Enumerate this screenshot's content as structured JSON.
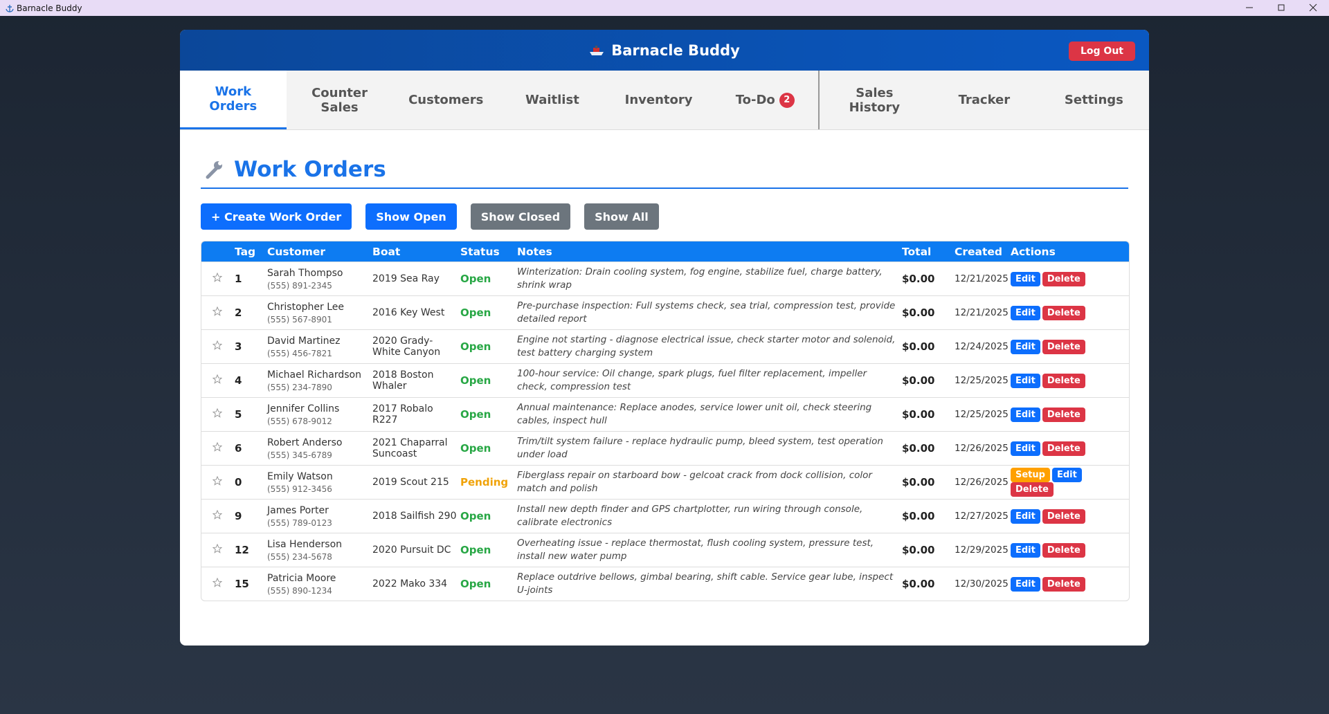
{
  "window": {
    "title": "Barnacle Buddy"
  },
  "header": {
    "title": "Barnacle Buddy",
    "logout": "Log Out"
  },
  "tabs": [
    {
      "label": "Work Orders"
    },
    {
      "label": "Counter Sales"
    },
    {
      "label": "Customers"
    },
    {
      "label": "Waitlist"
    },
    {
      "label": "Inventory"
    },
    {
      "label": "To-Do",
      "badge": 2
    }
  ],
  "tabs_right": [
    {
      "label": "Sales History"
    },
    {
      "label": "Tracker"
    },
    {
      "label": "Settings"
    }
  ],
  "section": {
    "title": "Work Orders"
  },
  "buttons": [
    "+ Create Work Order",
    "Show Open",
    "Show Closed",
    "Show All"
  ],
  "table": {
    "columns": [
      "Tag",
      "Customer",
      "Boat",
      "Status",
      "Notes",
      "Total",
      "Created",
      "Actions"
    ],
    "rows": [
      {
        "tag": 1,
        "name": "Sarah Thompso",
        "phone": "(555) 891-2345",
        "boat": "2019 Sea Ray",
        "status": {
          "text": "Open",
          "color": "#28a745"
        },
        "notes": "Winterization: Drain cooling system, fog engine, stabilize fuel, charge battery, shrink wrap",
        "total": "$0.00",
        "created": "12/21/2025",
        "actions": [
          {
            "label": "Edit",
            "color": "#0d6efd"
          },
          {
            "label": "Delete",
            "color": "#dc3545"
          }
        ]
      },
      {
        "tag": 2,
        "name": "Christopher Lee",
        "phone": "(555) 567-8901",
        "boat": "2016 Key West",
        "status": {
          "text": "Open",
          "color": "#28a745"
        },
        "notes": "Pre-purchase inspection: Full systems check, sea trial, compression test, provide detailed report",
        "total": "$0.00",
        "created": "12/21/2025",
        "actions": [
          {
            "label": "Edit",
            "color": "#0d6efd"
          },
          {
            "label": "Delete",
            "color": "#dc3545"
          }
        ]
      },
      {
        "tag": 3,
        "name": "David Martinez",
        "phone": "(555) 456-7821",
        "boat": "2020 Grady-White Canyon",
        "status": {
          "text": "Open",
          "color": "#28a745"
        },
        "notes": "Engine not starting - diagnose electrical issue, check starter motor and solenoid, test battery charging system",
        "total": "$0.00",
        "created": "12/24/2025",
        "actions": [
          {
            "label": "Edit",
            "color": "#0d6efd"
          },
          {
            "label": "Delete",
            "color": "#dc3545"
          }
        ]
      },
      {
        "tag": 4,
        "name": "Michael Richardson",
        "phone": "(555) 234-7890",
        "boat": "2018 Boston Whaler",
        "status": {
          "text": "Open",
          "color": "#28a745"
        },
        "notes": "100-hour service: Oil change, spark plugs, fuel filter replacement, impeller check, compression test",
        "total": "$0.00",
        "created": "12/25/2025",
        "actions": [
          {
            "label": "Edit",
            "color": "#0d6efd"
          },
          {
            "label": "Delete",
            "color": "#dc3545"
          }
        ]
      },
      {
        "tag": 5,
        "name": "Jennifer Collins",
        "phone": "(555) 678-9012",
        "boat": "2017 Robalo R227",
        "status": {
          "text": "Open",
          "color": "#28a745"
        },
        "notes": "Annual maintenance: Replace anodes, service lower unit oil, check steering cables, inspect hull",
        "total": "$0.00",
        "created": "12/25/2025",
        "actions": [
          {
            "label": "Edit",
            "color": "#0d6efd"
          },
          {
            "label": "Delete",
            "color": "#dc3545"
          }
        ]
      },
      {
        "tag": 6,
        "name": "Robert Anderso",
        "phone": "(555) 345-6789",
        "boat": "2021 Chaparral Suncoast",
        "status": {
          "text": "Open",
          "color": "#28a745"
        },
        "notes": "Trim/tilt system failure - replace hydraulic pump, bleed system, test operation under load",
        "total": "$0.00",
        "created": "12/26/2025",
        "actions": [
          {
            "label": "Edit",
            "color": "#0d6efd"
          },
          {
            "label": "Delete",
            "color": "#dc3545"
          }
        ]
      },
      {
        "tag": 0,
        "name": "Emily Watson",
        "phone": "(555) 912-3456",
        "boat": "2019 Scout 215",
        "status": {
          "text": "Pending",
          "color": "#f0a30a"
        },
        "notes": "Fiberglass repair on starboard bow - gelcoat crack from dock collision, color match and polish",
        "total": "$0.00",
        "created": "12/26/2025",
        "actions": [
          {
            "label": "Setup",
            "color": "#ffa000"
          },
          {
            "label": "Edit",
            "color": "#0d6efd"
          },
          {
            "label": "Delete",
            "color": "#dc3545"
          }
        ]
      },
      {
        "tag": 9,
        "name": "James Porter",
        "phone": "(555) 789-0123",
        "boat": "2018 Sailfish 290",
        "status": {
          "text": "Open",
          "color": "#28a745"
        },
        "notes": "Install new depth finder and GPS chartplotter, run wiring through console, calibrate electronics",
        "total": "$0.00",
        "created": "12/27/2025",
        "actions": [
          {
            "label": "Edit",
            "color": "#0d6efd"
          },
          {
            "label": "Delete",
            "color": "#dc3545"
          }
        ]
      },
      {
        "tag": 12,
        "name": "Lisa Henderson",
        "phone": "(555) 234-5678",
        "boat": "2020 Pursuit DC",
        "status": {
          "text": "Open",
          "color": "#28a745"
        },
        "notes": "Overheating issue - replace thermostat, flush cooling system, pressure test, install new water pump",
        "total": "$0.00",
        "created": "12/29/2025",
        "actions": [
          {
            "label": "Edit",
            "color": "#0d6efd"
          },
          {
            "label": "Delete",
            "color": "#dc3545"
          }
        ]
      },
      {
        "tag": 15,
        "name": "Patricia Moore",
        "phone": "(555) 890-1234",
        "boat": "2022 Mako 334",
        "status": {
          "text": "Open",
          "color": "#28a745"
        },
        "notes": "Replace outdrive bellows, gimbal bearing, shift cable. Service gear lube, inspect U-joints",
        "total": "$0.00",
        "created": "12/30/2025",
        "actions": [
          {
            "label": "Edit",
            "color": "#0d6efd"
          },
          {
            "label": "Delete",
            "color": "#dc3545"
          }
        ]
      }
    ]
  }
}
